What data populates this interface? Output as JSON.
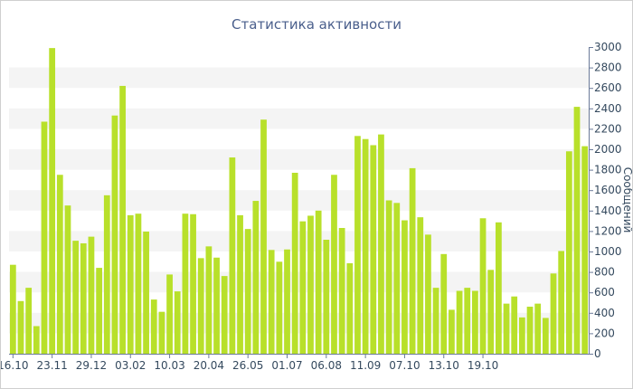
{
  "chart_data": {
    "type": "bar",
    "title": "Статистика активности",
    "ylabel": "Сообщений",
    "xlabel": "",
    "ylim": [
      0,
      3000
    ],
    "y_ticks": [
      0,
      200,
      400,
      600,
      800,
      1000,
      1200,
      1400,
      1600,
      1800,
      2000,
      2200,
      2400,
      2600,
      2800,
      3000
    ],
    "x_tick_labels": [
      {
        "index": 0,
        "label": "16.10"
      },
      {
        "index": 5,
        "label": "23.11"
      },
      {
        "index": 10,
        "label": "29.12"
      },
      {
        "index": 15,
        "label": "03.02"
      },
      {
        "index": 20,
        "label": "10.03"
      },
      {
        "index": 25,
        "label": "20.04"
      },
      {
        "index": 30,
        "label": "26.05"
      },
      {
        "index": 35,
        "label": "01.07"
      },
      {
        "index": 40,
        "label": "06.08"
      },
      {
        "index": 45,
        "label": "11.09"
      },
      {
        "index": 50,
        "label": "07.10"
      },
      {
        "index": 55,
        "label": "13.10"
      },
      {
        "index": 60,
        "label": "19.10"
      }
    ],
    "bar_color": "#b8e02a",
    "grid": "horizontal-bands",
    "values": [
      870,
      515,
      645,
      270,
      2270,
      2990,
      1750,
      1450,
      1105,
      1080,
      1145,
      840,
      1550,
      2330,
      2620,
      1355,
      1370,
      1195,
      530,
      410,
      775,
      610,
      1370,
      1365,
      935,
      1050,
      940,
      760,
      1920,
      1355,
      1220,
      1495,
      2290,
      1015,
      900,
      1020,
      1770,
      1295,
      1350,
      1400,
      1115,
      1750,
      1230,
      885,
      2130,
      2100,
      2040,
      2145,
      1500,
      1475,
      1305,
      1815,
      1335,
      1165,
      645,
      975,
      430,
      615,
      645,
      615,
      1325,
      820,
      1285,
      490,
      560,
      355,
      460,
      490,
      350,
      785,
      1005,
      1980,
      2415,
      2030
    ]
  }
}
